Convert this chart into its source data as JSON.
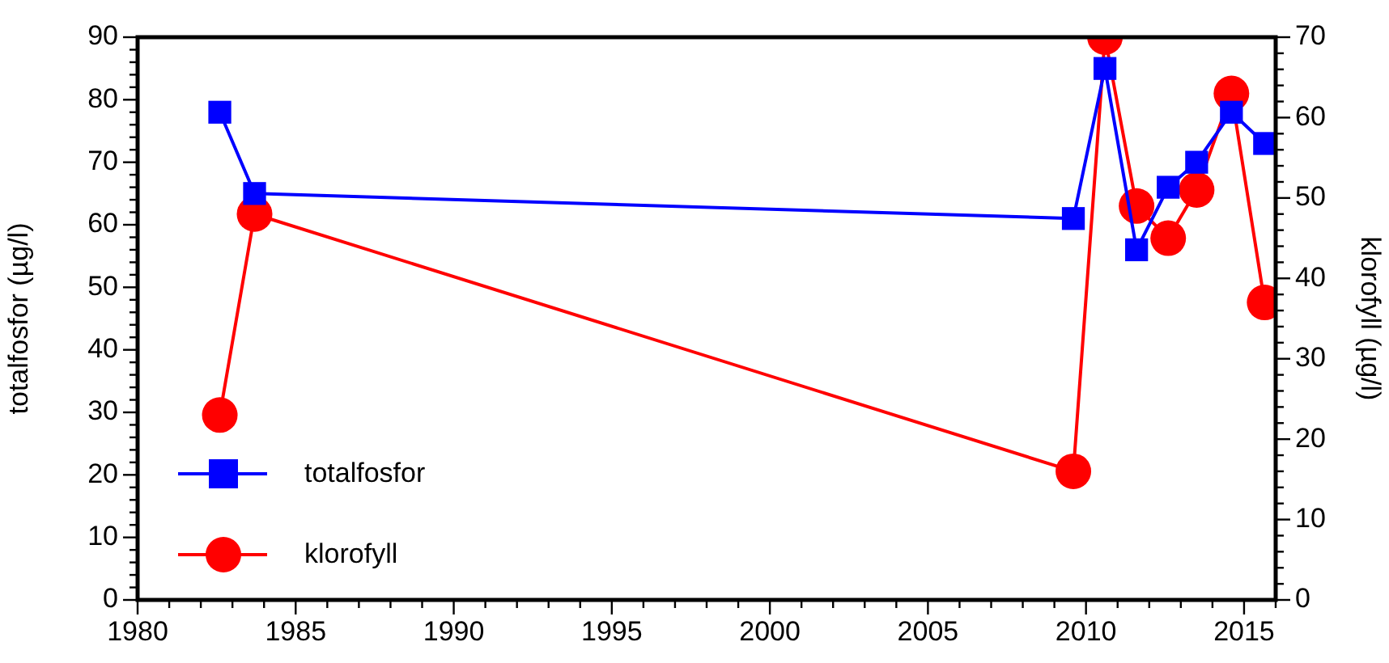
{
  "chart_data": {
    "type": "line",
    "ylabel": "totalfosfor (µg/l)",
    "y2label": "klorofyll (µg/l)",
    "legend": "bottom left",
    "grid": false,
    "line_style": "solid",
    "xlim": [
      1980,
      2016
    ],
    "xticks": [
      1980,
      {
        "value": 1981,
        "label": null
      },
      {
        "value": 1982,
        "label": null
      },
      {
        "value": 1983,
        "label": null
      },
      {
        "value": 1984,
        "label": null
      },
      1985,
      {
        "value": 1986,
        "label": null
      },
      {
        "value": 1987,
        "label": null
      },
      {
        "value": 1988,
        "label": null
      },
      {
        "value": 1989,
        "label": null
      },
      1990,
      {
        "value": 1991,
        "label": null
      },
      {
        "value": 1992,
        "label": null
      },
      {
        "value": 1993,
        "label": null
      },
      {
        "value": 1994,
        "label": null
      },
      1995,
      {
        "value": 1996,
        "label": null
      },
      {
        "value": 1997,
        "label": null
      },
      {
        "value": 1998,
        "label": null
      },
      {
        "value": 1999,
        "label": null
      },
      2000,
      {
        "value": 2001,
        "label": null
      },
      {
        "value": 2002,
        "label": null
      },
      {
        "value": 2003,
        "label": null
      },
      {
        "value": 2004,
        "label": null
      },
      2005,
      {
        "value": 2006,
        "label": null
      },
      {
        "value": 2007,
        "label": null
      },
      {
        "value": 2008,
        "label": null
      },
      {
        "value": 2009,
        "label": null
      },
      2010,
      {
        "value": 2011,
        "label": null
      },
      {
        "value": 2012,
        "label": null
      },
      {
        "value": 2013,
        "label": null
      },
      {
        "value": 2014,
        "label": null
      },
      2015,
      {
        "value": 2016,
        "label": null
      }
    ],
    "ylim": [
      0,
      90
    ],
    "yticks": [
      0,
      {
        "value": 2,
        "label": null
      },
      {
        "value": 4,
        "label": null
      },
      {
        "value": 6,
        "label": null
      },
      {
        "value": 8,
        "label": null
      },
      10,
      {
        "value": 12,
        "label": null
      },
      {
        "value": 14,
        "label": null
      },
      {
        "value": 16,
        "label": null
      },
      {
        "value": 18,
        "label": null
      },
      20,
      {
        "value": 22,
        "label": null
      },
      {
        "value": 24,
        "label": null
      },
      {
        "value": 26,
        "label": null
      },
      {
        "value": 28,
        "label": null
      },
      30,
      {
        "value": 32,
        "label": null
      },
      {
        "value": 34,
        "label": null
      },
      {
        "value": 36,
        "label": null
      },
      {
        "value": 38,
        "label": null
      },
      40,
      {
        "value": 42,
        "label": null
      },
      {
        "value": 44,
        "label": null
      },
      {
        "value": 46,
        "label": null
      },
      {
        "value": 48,
        "label": null
      },
      50,
      {
        "value": 52,
        "label": null
      },
      {
        "value": 54,
        "label": null
      },
      {
        "value": 56,
        "label": null
      },
      {
        "value": 58,
        "label": null
      },
      60,
      {
        "value": 62,
        "label": null
      },
      {
        "value": 64,
        "label": null
      },
      {
        "value": 66,
        "label": null
      },
      {
        "value": 68,
        "label": null
      },
      70,
      {
        "value": 72,
        "label": null
      },
      {
        "value": 74,
        "label": null
      },
      {
        "value": 76,
        "label": null
      },
      {
        "value": 78,
        "label": null
      },
      80,
      {
        "value": 82,
        "label": null
      },
      {
        "value": 84,
        "label": null
      },
      {
        "value": 86,
        "label": null
      },
      {
        "value": 88,
        "label": null
      },
      90
    ],
    "y2lim": [
      0,
      70
    ],
    "y2ticks": [
      0,
      {
        "value": 2,
        "label": null
      },
      {
        "value": 4,
        "label": null
      },
      {
        "value": 6,
        "label": null
      },
      {
        "value": 8,
        "label": null
      },
      10,
      {
        "value": 12,
        "label": null
      },
      {
        "value": 14,
        "label": null
      },
      {
        "value": 16,
        "label": null
      },
      {
        "value": 18,
        "label": null
      },
      20,
      {
        "value": 22,
        "label": null
      },
      {
        "value": 24,
        "label": null
      },
      {
        "value": 26,
        "label": null
      },
      {
        "value": 28,
        "label": null
      },
      30,
      {
        "value": 32,
        "label": null
      },
      {
        "value": 34,
        "label": null
      },
      {
        "value": 36,
        "label": null
      },
      {
        "value": 38,
        "label": null
      },
      40,
      {
        "value": 42,
        "label": null
      },
      {
        "value": 44,
        "label": null
      },
      {
        "value": 46,
        "label": null
      },
      {
        "value": 48,
        "label": null
      },
      50,
      {
        "value": 52,
        "label": null
      },
      {
        "value": 54,
        "label": null
      },
      {
        "value": 56,
        "label": null
      },
      {
        "value": 58,
        "label": null
      },
      60,
      {
        "value": 62,
        "label": null
      },
      {
        "value": 64,
        "label": null
      },
      {
        "value": 66,
        "label": null
      },
      {
        "value": 68,
        "label": null
      },
      70
    ],
    "series": [
      {
        "name": "totalfosfor",
        "color": "#0000ff",
        "marker": "square",
        "x": [
          1982.6,
          1983.7,
          2009.6,
          2010.6,
          2011.6,
          2012.6,
          2013.5,
          2014.6,
          2015.65
        ],
        "values": [
          78,
          65,
          61,
          85,
          56,
          66,
          70,
          78,
          73
        ]
      },
      {
        "name": "klorofyll",
        "color": "#ff0000",
        "marker": "circle",
        "axis": "y2",
        "x": [
          1982.6,
          1983.7,
          2009.6,
          2010.6,
          2011.6,
          2012.6,
          2013.5,
          2014.6,
          2015.65
        ],
        "values": [
          23,
          48,
          16,
          70,
          49,
          45,
          51,
          63,
          37
        ]
      }
    ]
  }
}
